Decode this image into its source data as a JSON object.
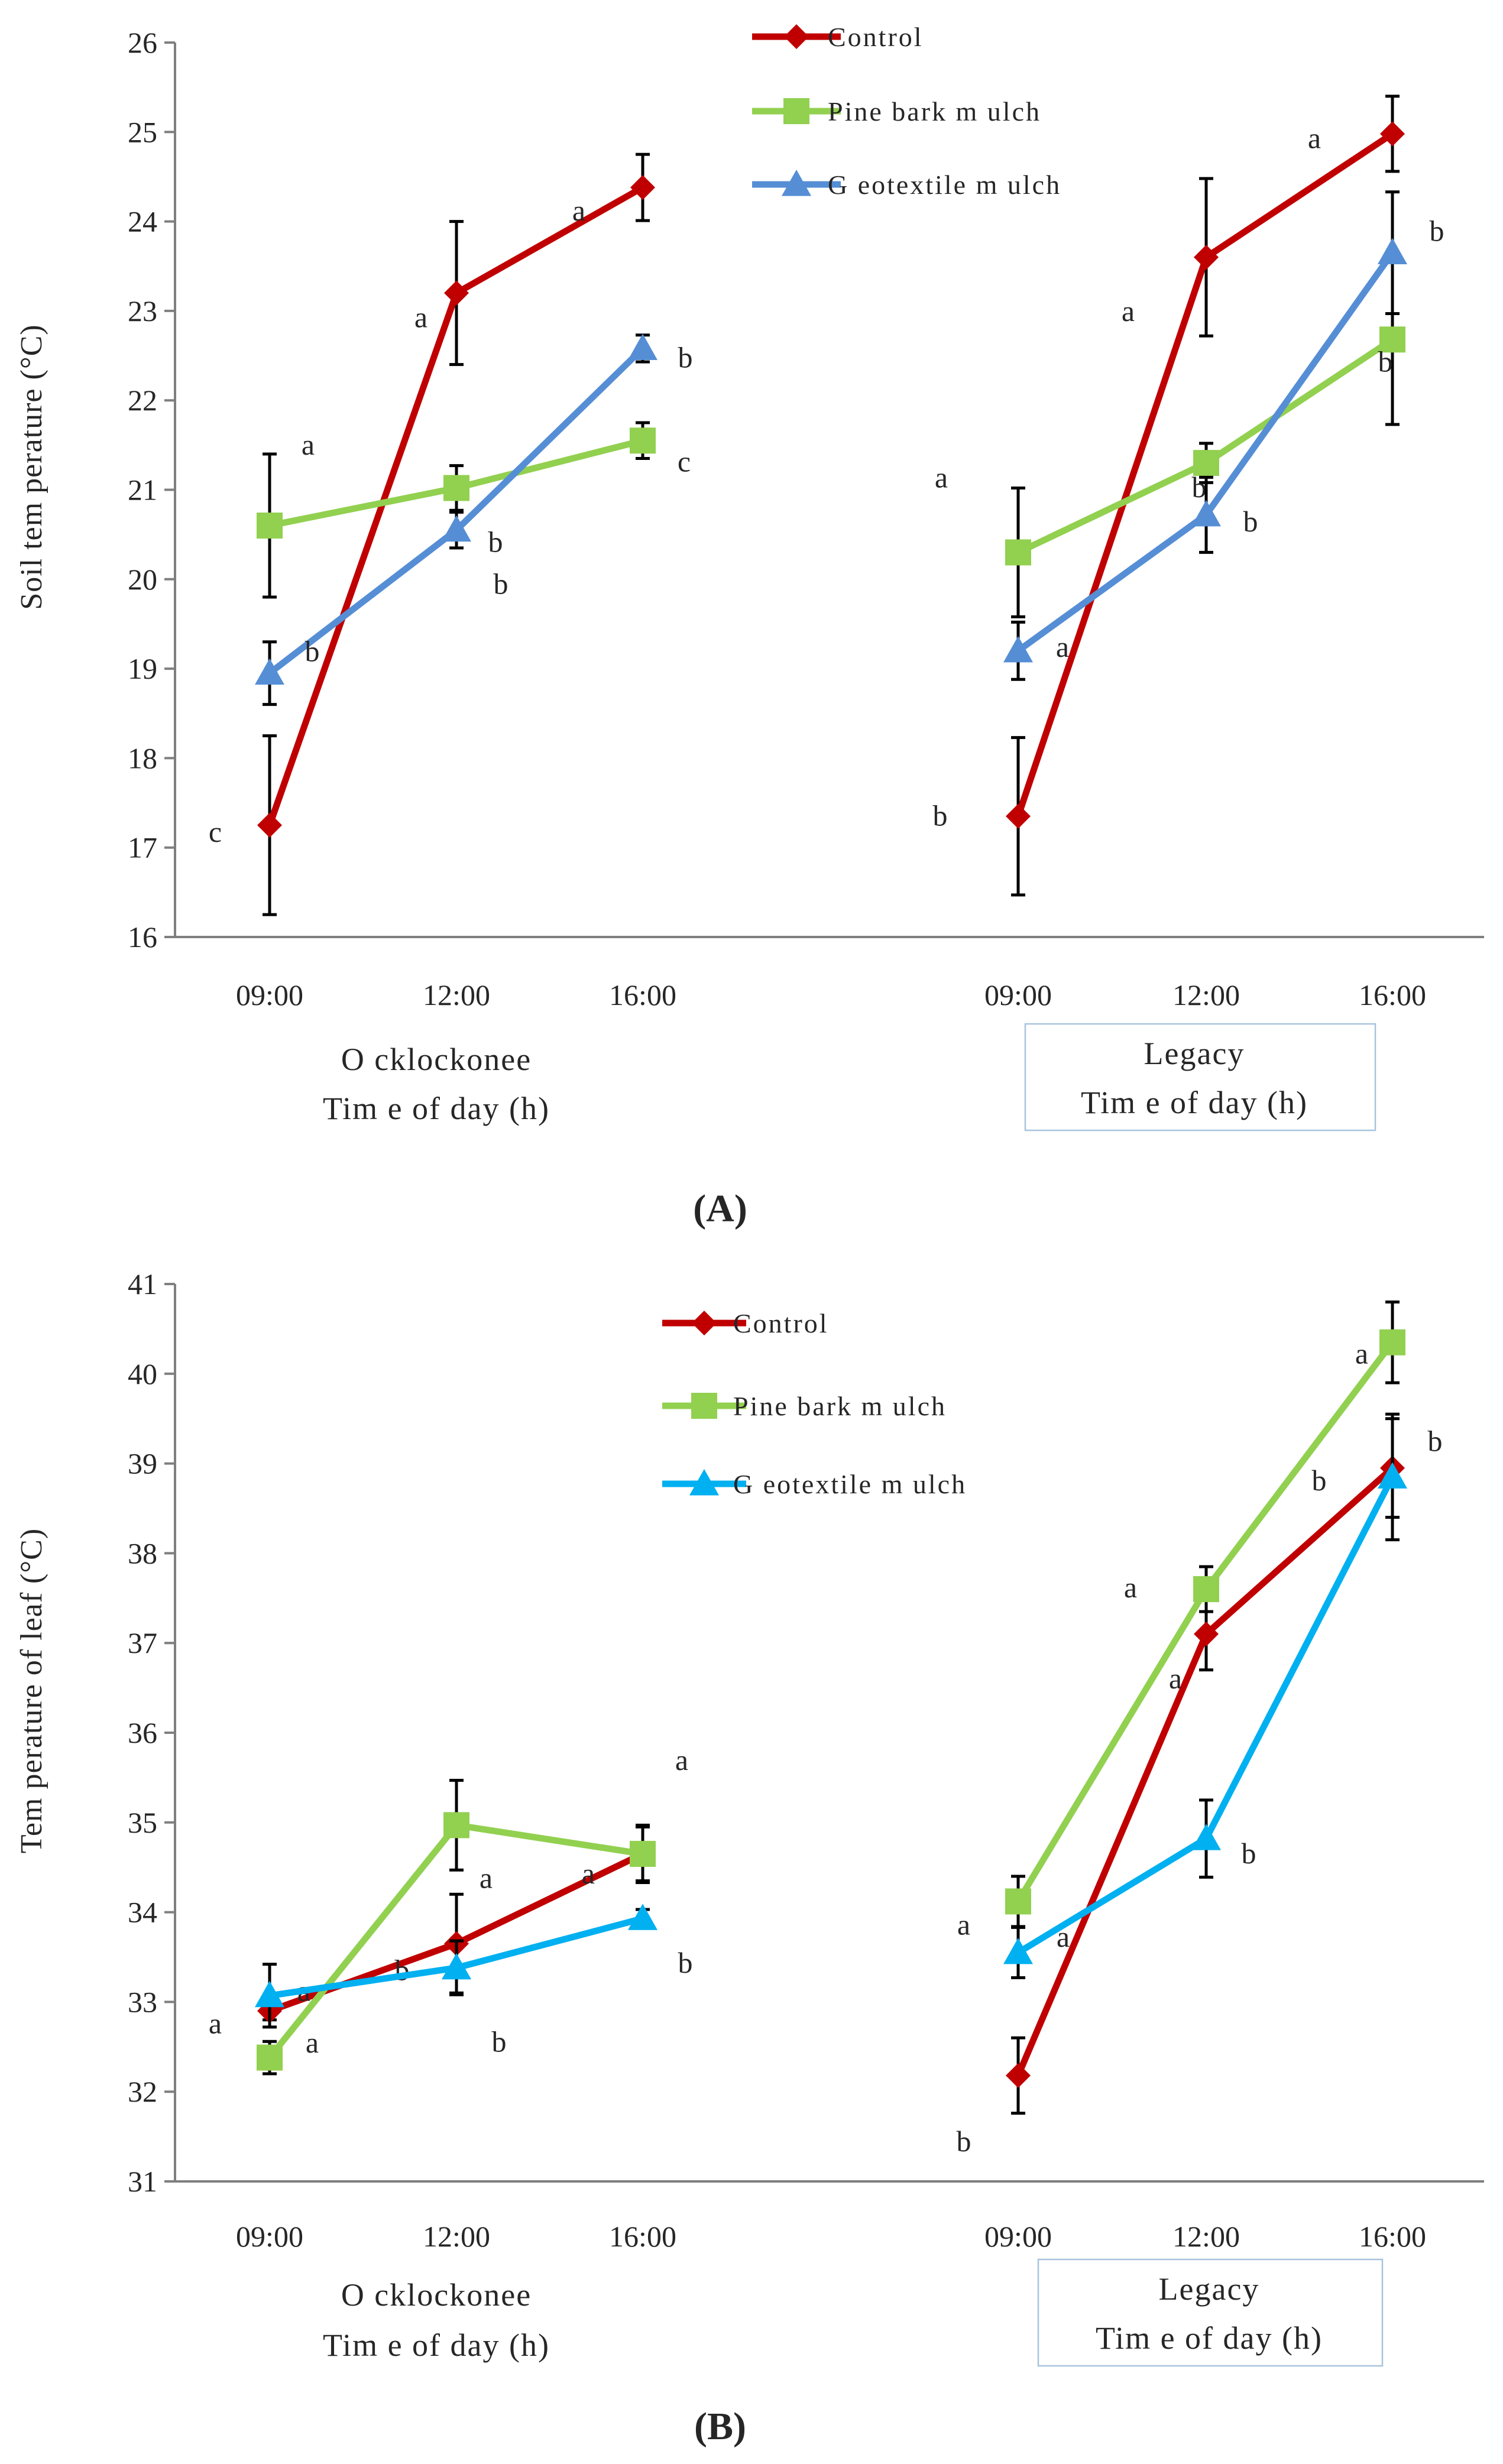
{
  "figure": {
    "panel_a_label": "(A)",
    "panel_b_label": "(B)"
  },
  "chart_data": [
    {
      "type": "line",
      "panel": "A",
      "ylabel": "Soil tem perature (°C)",
      "ylim": [
        16,
        26
      ],
      "yticks": [
        16,
        17,
        18,
        19,
        20,
        21,
        22,
        23,
        24,
        25,
        26
      ],
      "colors": {
        "Control": "#c00000",
        "Pine bark mulch": "#92d050",
        "Geotextile mulch": "#558ed5"
      },
      "legend_position": "top-center",
      "groups": [
        {
          "name": "Ocklockonee",
          "caption_line1": "O cklockonee",
          "caption_line2": "Tim e of day (h)",
          "caption_boxed": false,
          "categories": [
            "09:00",
            "12:00",
            "16:00"
          ]
        },
        {
          "name": "Legacy",
          "caption_line1": "Legacy",
          "caption_line2": "Tim e of day (h)",
          "caption_boxed": true,
          "categories": [
            "09:00",
            "12:00",
            "16:00"
          ]
        }
      ],
      "series": [
        {
          "name": "Control",
          "legend_label": "Control",
          "marker": "diamond",
          "groups": [
            {
              "values": [
                17.25,
                23.2,
                24.38
              ],
              "errors": [
                1.0,
                0.8,
                0.37
              ],
              "letters": [
                "c",
                "a",
                "a"
              ]
            },
            {
              "values": [
                17.35,
                23.6,
                24.98
              ],
              "errors": [
                0.88,
                0.88,
                0.42
              ],
              "letters": [
                "b",
                "a",
                "a"
              ]
            }
          ]
        },
        {
          "name": "Pine bark mulch",
          "legend_label": "Pine bark m ulch",
          "marker": "square",
          "groups": [
            {
              "values": [
                20.6,
                21.02,
                21.55
              ],
              "errors": [
                0.8,
                0.25,
                0.2
              ],
              "letters": [
                "a",
                "b",
                "c"
              ]
            },
            {
              "values": [
                20.3,
                21.3,
                22.68
              ],
              "errors": [
                0.72,
                0.22,
                0.95
              ],
              "letters": [
                "a",
                "b",
                "b"
              ]
            }
          ]
        },
        {
          "name": "Geotextile mulch",
          "legend_label": "G eotextile m ulch",
          "marker": "triangle",
          "groups": [
            {
              "values": [
                18.95,
                20.55,
                22.58
              ],
              "errors": [
                0.35,
                0.2,
                0.15
              ],
              "letters": [
                "b",
                "b",
                "b"
              ]
            },
            {
              "values": [
                19.2,
                20.72,
                23.65
              ],
              "errors": [
                0.32,
                0.42,
                0.68
              ],
              "letters": [
                "a",
                "b",
                "b"
              ]
            }
          ]
        }
      ]
    },
    {
      "type": "line",
      "panel": "B",
      "ylabel": "Tem perature of leaf (°C)",
      "ylim": [
        31,
        41
      ],
      "yticks": [
        31,
        32,
        33,
        34,
        35,
        36,
        37,
        38,
        39,
        40,
        41
      ],
      "colors": {
        "Control": "#c00000",
        "Pine bark mulch": "#92d050",
        "Geotextile mulch": "#00b0f0"
      },
      "legend_position": "top-center",
      "groups": [
        {
          "name": "Ocklockonee",
          "caption_line1": "O cklockonee",
          "caption_line2": "Tim e of day (h)",
          "caption_boxed": false,
          "categories": [
            "09:00",
            "12:00",
            "16:00"
          ]
        },
        {
          "name": "Legacy",
          "caption_line1": "Legacy",
          "caption_line2": "Tim e of day (h)",
          "caption_boxed": true,
          "categories": [
            "09:00",
            "12:00",
            "16:00"
          ]
        }
      ],
      "series": [
        {
          "name": "Control",
          "legend_label": "Control",
          "marker": "diamond",
          "groups": [
            {
              "values": [
                32.9,
                33.65,
                34.65
              ],
              "errors": [
                0.1,
                0.55,
                0.3
              ],
              "letters": [
                "a",
                "b",
                "a"
              ]
            },
            {
              "values": [
                32.18,
                37.1,
                38.95
              ],
              "errors": [
                0.42,
                0.4,
                0.55
              ],
              "letters": [
                "b",
                "a",
                "b"
              ]
            }
          ]
        },
        {
          "name": "Pine bark mulch",
          "legend_label": "Pine bark m ulch",
          "marker": "square",
          "groups": [
            {
              "values": [
                32.38,
                34.97,
                34.65
              ],
              "errors": [
                0.18,
                0.5,
                0.32
              ],
              "letters": [
                "a",
                "a",
                "a"
              ]
            },
            {
              "values": [
                34.12,
                37.6,
                40.35
              ],
              "errors": [
                0.28,
                0.25,
                0.45
              ],
              "letters": [
                "a",
                "a",
                "a"
              ]
            }
          ]
        },
        {
          "name": "Geotextile mulch",
          "legend_label": "G eotextile m ulch",
          "marker": "triangle",
          "groups": [
            {
              "values": [
                33.07,
                33.38,
                33.93
              ],
              "errors": [
                0.35,
                0.3,
                0.1
              ],
              "letters": [
                "a",
                "b",
                "b"
              ]
            },
            {
              "values": [
                33.55,
                34.82,
                38.85
              ],
              "errors": [
                0.28,
                0.43,
                0.7
              ],
              "letters": [
                "a",
                "b",
                "b"
              ]
            }
          ]
        }
      ]
    }
  ]
}
